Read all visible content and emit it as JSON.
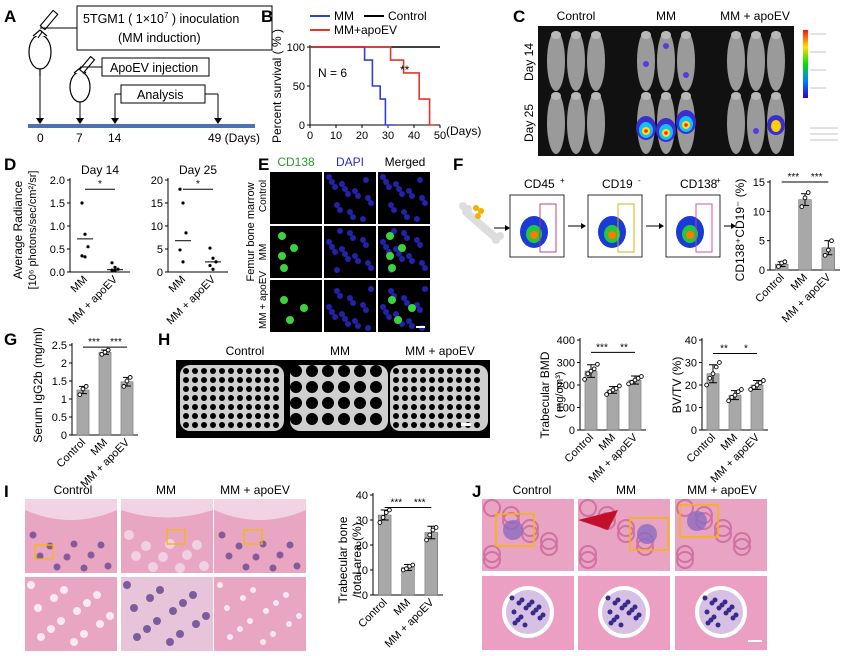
{
  "panels": {
    "A": {
      "letter": "A",
      "steps": [
        "5TGM1 ( 1×10",
        "7",
        " ) inoculation",
        "(MM induction)",
        "ApoEV injection",
        "Analysis"
      ],
      "ticks": [
        "0",
        "7",
        "14",
        "49 (Days)"
      ]
    },
    "B": {
      "letter": "B",
      "legend": [
        "MM",
        "Control",
        "MM+apoEV"
      ],
      "n_label": "N = 6",
      "sig": "**",
      "ylabel": "Percent survival ( % )",
      "xunit": "(Days)",
      "yticks": [
        "0",
        "50",
        "100"
      ],
      "xticks": [
        "0",
        "10",
        "20",
        "30",
        "40",
        "50"
      ]
    },
    "C": {
      "letter": "C",
      "cols": [
        "Control",
        "MM",
        "MM + apoEV"
      ],
      "rows": [
        "Day 14",
        "Day 25"
      ]
    },
    "D": {
      "letter": "D",
      "titles": [
        "Day 14",
        "Day 25"
      ],
      "ylabel1": "Average Radiance",
      "ylabel2": "[10⁶ photons/sec/cm²/sr]",
      "yticks1": [
        "0.0",
        "0.5",
        "1.0",
        "1.5",
        "2.0"
      ],
      "yticks2": [
        "0",
        "5",
        "10",
        "15",
        "20"
      ],
      "xcats": [
        "MM",
        "MM + apoEV"
      ],
      "sig": "*"
    },
    "E": {
      "letter": "E",
      "cols": [
        "CD138",
        "DAPI",
        "Merged"
      ],
      "rows": [
        "Control",
        "MM",
        "MM + apoEV"
      ],
      "side": "Femur bone marrow"
    },
    "F": {
      "letter": "F",
      "gates": [
        "CD45",
        "CD19",
        "CD138"
      ],
      "gate_sup": [
        "+",
        "-",
        "+"
      ],
      "ylabel": "CD138⁺CD19⁻ (%)",
      "yticks": [
        "0",
        "5",
        "10",
        "15"
      ],
      "xcats": [
        "Control",
        "MM",
        "MM + apoEV"
      ],
      "sig": [
        "***",
        "***"
      ]
    },
    "G": {
      "letter": "G",
      "ylabel": "Serum IgG2b (mg/ml)",
      "yticks": [
        "0",
        "0.5",
        "1",
        "1.5",
        "2",
        "2.5"
      ],
      "xcats": [
        "Control",
        "MM",
        "MM + apoEV"
      ],
      "sig": [
        "***",
        "***"
      ]
    },
    "H": {
      "letter": "H",
      "cols": [
        "Control",
        "MM",
        "MM + apoEV"
      ],
      "ylabel_bmd1": "Trabecular BMD",
      "ylabel_bmd2": "( mg/cm³)",
      "yticks_bmd": [
        "0",
        "100",
        "200",
        "300",
        "400"
      ],
      "ylabel_bv": "BV/TV (%)",
      "yticks_bv": [
        "0",
        "10",
        "20",
        "30",
        "40"
      ],
      "xcats": [
        "Control",
        "MM",
        "MM + apoEV"
      ],
      "sig_bmd": [
        "***",
        "**"
      ],
      "sig_bv": [
        "**",
        "*"
      ]
    },
    "I": {
      "letter": "I",
      "cols": [
        "Control",
        "MM",
        "MM + apoEV"
      ],
      "ylabel1": "Trabecular bone",
      "ylabel2": "/total area (%)",
      "yticks": [
        "0",
        "10",
        "20",
        "30",
        "40"
      ],
      "xcats": [
        "Control",
        "MM",
        "MM + apoEV"
      ],
      "sig": [
        "***",
        "***"
      ]
    },
    "J": {
      "letter": "J",
      "cols": [
        "Control",
        "MM",
        "MM + apoEV"
      ]
    }
  },
  "colors": {
    "mm": "#2e3fdf",
    "control": "#000000",
    "apoev": "#e8342b",
    "bar": "#a8a8a8",
    "timeline": "#4a74b0",
    "microct": "#cfcfcf",
    "he_pink": "#e8a6c2",
    "he_purple": "#5a3a8a",
    "cd138_green": "#3fd23f",
    "dapi_blue": "#2828c8",
    "flow_gate": "#c0306a",
    "box_yellow": "#f5b800"
  },
  "chart_data": [
    {
      "id": "B",
      "type": "line",
      "title": "",
      "xlabel": "(Days)",
      "ylabel": "Percent survival ( % )",
      "xlim": [
        0,
        50
      ],
      "ylim": [
        0,
        100
      ],
      "series": [
        {
          "name": "MM",
          "x": [
            0,
            21,
            21,
            24,
            24,
            27,
            27,
            29,
            29,
            32
          ],
          "y": [
            100,
            100,
            83.3,
            83.3,
            50,
            50,
            33.3,
            33.3,
            0,
            0
          ]
        },
        {
          "name": "Control",
          "x": [
            0,
            50
          ],
          "y": [
            100,
            100
          ]
        },
        {
          "name": "MM+apoEV",
          "x": [
            0,
            31,
            31,
            36,
            36,
            42,
            42,
            46,
            46,
            48
          ],
          "y": [
            100,
            100,
            83.3,
            83.3,
            66.7,
            66.7,
            33.3,
            33.3,
            0,
            0
          ]
        }
      ]
    },
    {
      "id": "D1",
      "type": "scatter",
      "title": "Day 14",
      "ylim": [
        0,
        2.0
      ],
      "categories": [
        "MM",
        "MM + apoEV"
      ],
      "points": [
        [
          1.5,
          0.82,
          0.55,
          0.35,
          0.33
        ],
        [
          0.2,
          0.1,
          0.06,
          0.04,
          0.03
        ]
      ],
      "medians": [
        0.72,
        0.05
      ]
    },
    {
      "id": "D2",
      "type": "scatter",
      "title": "Day 25",
      "ylim": [
        0,
        20
      ],
      "categories": [
        "MM",
        "MM + apoEV"
      ],
      "points": [
        [
          18,
          15,
          8.5,
          4.8,
          2.2
        ],
        [
          5.2,
          3.0,
          2.2,
          1.4,
          0.6
        ]
      ],
      "medians": [
        6.8,
        2.2
      ]
    },
    {
      "id": "F",
      "type": "bar",
      "ylabel": "CD138⁺CD19⁻ (%)",
      "ylim": [
        0,
        15
      ],
      "categories": [
        "Control",
        "MM",
        "MM + apoEV"
      ],
      "values": [
        1.0,
        12.0,
        3.8
      ],
      "errors": [
        0.4,
        1.0,
        1.2
      ],
      "points": [
        [
          0.6,
          1.2,
          1.4
        ],
        [
          10.8,
          12.3,
          13.2
        ],
        [
          2.5,
          3.4,
          5.0
        ]
      ]
    },
    {
      "id": "G",
      "type": "bar",
      "ylabel": "Serum IgG2b (mg/ml)",
      "ylim": [
        0,
        2.5
      ],
      "categories": [
        "Control",
        "MM",
        "MM + apoEV"
      ],
      "values": [
        1.25,
        2.3,
        1.48
      ],
      "errors": [
        0.1,
        0.06,
        0.12
      ],
      "points": [
        [
          1.12,
          1.28,
          1.35
        ],
        [
          2.24,
          2.3,
          2.36
        ],
        [
          1.35,
          1.5,
          1.6
        ]
      ]
    },
    {
      "id": "H1",
      "type": "bar",
      "ylabel": "Trabecular BMD ( mg/cm³)",
      "ylim": [
        0,
        400
      ],
      "categories": [
        "Control",
        "MM",
        "MM + apoEV"
      ],
      "values": [
        262,
        178,
        222
      ],
      "errors": [
        28,
        15,
        18
      ],
      "points": [
        [
          225,
          250,
          262,
          272,
          292
        ],
        [
          158,
          170,
          178,
          185,
          196
        ],
        [
          205,
          212,
          222,
          230,
          238
        ]
      ]
    },
    {
      "id": "H2",
      "type": "bar",
      "ylabel": "BV/TV (%)",
      "ylim": [
        0,
        40
      ],
      "categories": [
        "Control",
        "MM",
        "MM + apoEV"
      ],
      "values": [
        25,
        15.5,
        20
      ],
      "errors": [
        4,
        2,
        2
      ],
      "points": [
        [
          20,
          23,
          25,
          28,
          30
        ],
        [
          13,
          14.5,
          15.5,
          17,
          18
        ],
        [
          18,
          19,
          20,
          21,
          22
        ]
      ]
    },
    {
      "id": "I",
      "type": "bar",
      "ylabel": "Trabecular bone /total area (%)",
      "ylim": [
        0,
        40
      ],
      "categories": [
        "Control",
        "MM",
        "MM + apoEV"
      ],
      "values": [
        32,
        11,
        25
      ],
      "errors": [
        2,
        1.2,
        2.5
      ],
      "points": [
        [
          29,
          31,
          33,
          34
        ],
        [
          10,
          10.5,
          11.5,
          12
        ],
        [
          22,
          24,
          26,
          27
        ]
      ]
    }
  ]
}
